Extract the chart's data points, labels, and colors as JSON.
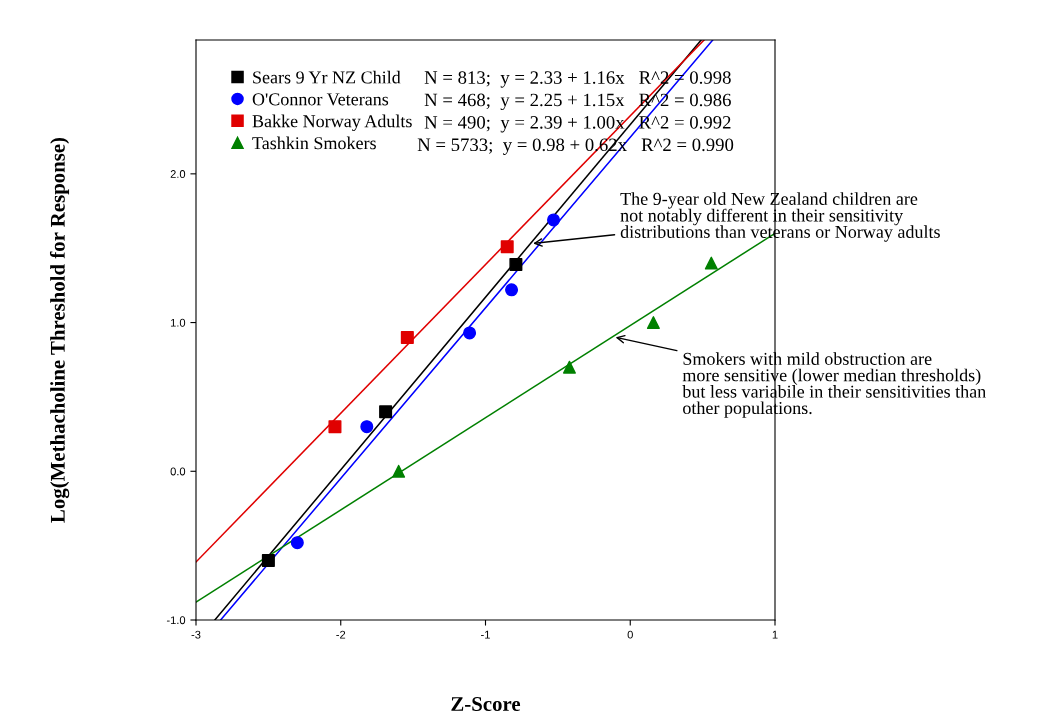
{
  "chart_data": {
    "type": "scatter",
    "xlabel": "Z-Score",
    "ylabel": "Log(Methacholine Threshold for Response)",
    "xlim": [
      -3,
      1
    ],
    "xticks": [
      -3,
      -2,
      -1,
      0,
      1
    ],
    "ylim": [
      -1,
      2.9
    ],
    "yticks": [
      {
        "value": -1,
        "label": "-1.0"
      },
      {
        "value": 0,
        "label": "0.0"
      },
      {
        "value": 1,
        "label": "1.0"
      },
      {
        "value": 2,
        "label": "2.0"
      }
    ],
    "grid": false,
    "legend": "top left",
    "series": [
      {
        "name": "Sears 9 Yr NZ Child",
        "color": "#000000",
        "marker": "square",
        "x": [
          -2.5,
          -1.69,
          -0.79
        ],
        "values": [
          -0.6,
          0.4,
          1.39
        ]
      },
      {
        "name": "O'Connor Veterans",
        "color": "#0000ff",
        "marker": "circle",
        "x": [
          -2.3,
          -1.82,
          -1.11,
          -0.82,
          -0.53
        ],
        "values": [
          -0.48,
          0.3,
          0.93,
          1.22,
          1.69
        ]
      },
      {
        "name": "Bakke Norway Adults",
        "color": "#e00000",
        "marker": "square",
        "x": [
          -2.04,
          -1.54,
          -0.85
        ],
        "values": [
          0.3,
          0.9,
          1.51
        ]
      },
      {
        "name": "Tashkin Smokers",
        "color": "#008000",
        "marker": "triangle",
        "x": [
          -1.6,
          -0.42,
          0.16,
          0.56
        ],
        "values": [
          0,
          0.7,
          1.0,
          1.4
        ]
      },
      {
        "type": "line",
        "color": "#000000",
        "marker": "none",
        "x": [
          -2.87,
          0.49
        ],
        "values": [
          -1,
          2.9
        ]
      },
      {
        "type": "line",
        "color": "#0000ff",
        "marker": "none",
        "x": [
          -2.83,
          0.57
        ],
        "values": [
          -1,
          2.9
        ]
      },
      {
        "type": "line",
        "color": "#e00000",
        "marker": "none",
        "x": [
          -3,
          0.51
        ],
        "values": [
          -0.61,
          2.9
        ]
      },
      {
        "type": "line",
        "color": "#008000",
        "marker": "none",
        "x": [
          -3,
          1
        ],
        "values": [
          -0.88,
          1.6
        ]
      }
    ],
    "annotations": [
      "N = 813;  y = 2.33 + 1.16x   R^2 = 0.998",
      "N = 468;  y = 2.25 + 1.15x   R^2 = 0.986",
      "N = 490;  y = 2.39 + 1.00x   R^2 = 0.992",
      "N = 5733;  y = 0.98 + 0.62x   R^2 = 0.990",
      {
        "text": "The 9-year old New Zealand children are\nnot notably different in their sensitivity\ndistributions than veterans or Norway adults",
        "x": -0.69,
        "y": 1.53
      },
      {
        "text": "Smokers with mild obstruction are\nmore sensitive (lower median thresholds)\nbut less variabile in their sensitivities than\nother populations.",
        "x": -0.12,
        "y": 0.905
      }
    ]
  }
}
